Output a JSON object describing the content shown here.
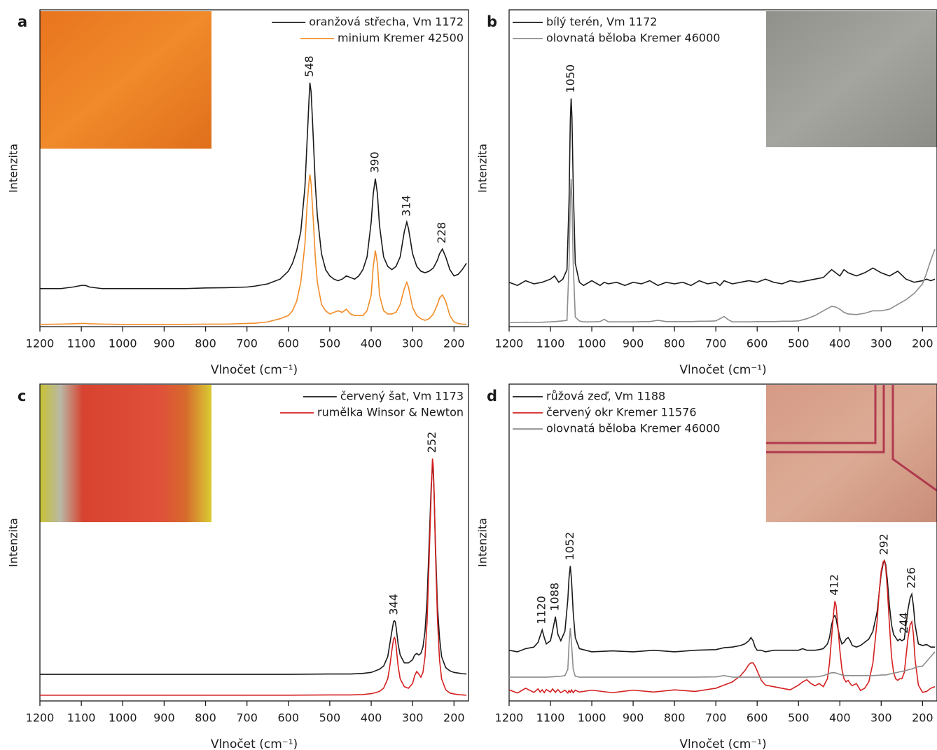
{
  "chart_data": [
    {
      "type": "line",
      "panel": "a",
      "xlabel": "Vlnočet (cm⁻¹)",
      "ylabel": "Intenzita",
      "legend": "upper right",
      "xlim": [
        1200,
        165
      ],
      "ylim": [
        0,
        100
      ],
      "xticks": [
        1200,
        1100,
        1000,
        900,
        800,
        700,
        600,
        500,
        400,
        300,
        200
      ],
      "peak_labels": [
        548,
        390,
        314,
        228
      ],
      "x": [
        1200,
        1150,
        1120,
        1100,
        1090,
        1080,
        1050,
        1000,
        950,
        900,
        850,
        800,
        750,
        700,
        680,
        650,
        620,
        600,
        590,
        580,
        570,
        560,
        555,
        550,
        548,
        545,
        540,
        535,
        530,
        520,
        510,
        500,
        490,
        480,
        470,
        460,
        450,
        440,
        430,
        420,
        410,
        400,
        395,
        390,
        385,
        380,
        370,
        360,
        350,
        340,
        330,
        320,
        314,
        310,
        300,
        290,
        280,
        270,
        260,
        250,
        240,
        235,
        228,
        220,
        210,
        200,
        190,
        180,
        170
      ],
      "series": [
        {
          "name": "oranžová střecha, Vm 1172",
          "color": "#1a1a1a",
          "values": [
            12,
            12,
            12.5,
            13,
            13,
            12.5,
            12,
            12,
            12,
            12,
            12,
            12.2,
            12.3,
            12.5,
            12.8,
            13.5,
            15,
            17.5,
            20,
            24,
            30,
            44,
            58,
            72,
            77,
            74,
            60,
            45,
            35,
            23,
            18,
            16,
            15,
            14.5,
            15,
            16,
            15.5,
            15,
            16,
            18,
            22,
            33,
            42,
            46.7,
            42,
            32,
            22,
            19,
            18,
            19,
            22,
            30,
            33,
            31,
            23,
            19,
            17.5,
            17,
            17.5,
            18.5,
            21,
            23,
            24.5,
            22,
            18,
            16,
            16.5,
            18,
            20
          ]
        },
        {
          "name": "minium Kremer 42500",
          "color": "#f28c28",
          "values": [
            0.7,
            0.8,
            0.9,
            1,
            1,
            0.9,
            0.8,
            0.7,
            0.7,
            0.7,
            0.7,
            0.8,
            0.8,
            1,
            1.1,
            1.5,
            2.5,
            3.5,
            5,
            8,
            14,
            26,
            38,
            46,
            48,
            45,
            34,
            22,
            14,
            7,
            5,
            4,
            4.5,
            5,
            4.5,
            5.5,
            4,
            3.5,
            3.5,
            3.5,
            5,
            10,
            19,
            24,
            20,
            10,
            5,
            4,
            4,
            4.5,
            7,
            12,
            14,
            12.5,
            6,
            3.5,
            2.5,
            2,
            2.5,
            4,
            7,
            9,
            10,
            8,
            3.5,
            1.5,
            1,
            0.8,
            0.7
          ]
        }
      ]
    },
    {
      "type": "line",
      "panel": "b",
      "xlabel": "Vlnočet (cm⁻¹)",
      "ylabel": "Intenzita",
      "legend": "upper left",
      "xlim": [
        1200,
        165
      ],
      "ylim": [
        0,
        100
      ],
      "xticks": [
        1200,
        1100,
        1000,
        900,
        800,
        700,
        600,
        500,
        400,
        300,
        200
      ],
      "peak_labels": [
        1050
      ],
      "x": [
        1200,
        1180,
        1160,
        1140,
        1120,
        1100,
        1090,
        1080,
        1070,
        1060,
        1055,
        1052,
        1050,
        1048,
        1045,
        1040,
        1030,
        1020,
        1000,
        980,
        970,
        960,
        940,
        920,
        900,
        880,
        860,
        840,
        820,
        800,
        780,
        760,
        740,
        720,
        700,
        690,
        680,
        670,
        660,
        640,
        620,
        600,
        580,
        560,
        540,
        520,
        500,
        480,
        460,
        440,
        420,
        410,
        400,
        390,
        380,
        360,
        340,
        320,
        300,
        280,
        260,
        240,
        220,
        200,
        190,
        180,
        170
      ],
      "series": [
        {
          "name": "bílý terén, Vm 1172",
          "color": "#1a1a1a",
          "values": [
            14,
            13,
            14.5,
            13.5,
            14,
            15,
            16,
            14,
            15,
            18,
            40,
            65,
            72,
            66,
            45,
            20,
            14,
            13,
            14.5,
            13,
            14,
            13.5,
            14,
            13,
            14,
            13.5,
            14.5,
            13,
            14,
            13.5,
            14,
            13,
            14.5,
            13.5,
            14,
            13,
            14.5,
            14,
            13.5,
            14,
            14.5,
            14,
            15,
            14,
            13.5,
            14.5,
            14,
            14.5,
            15,
            15.5,
            18,
            17,
            16,
            18,
            17,
            16,
            17,
            18.5,
            17,
            16,
            17.5,
            15,
            14,
            14.5,
            15,
            14.5,
            15
          ]
        },
        {
          "name": "olovnatá běloba Kremer 46000",
          "color": "#8c8c8c",
          "values": [
            1.3,
            1.3,
            1.4,
            1.3,
            1.4,
            1.5,
            1.6,
            1.7,
            1.8,
            2,
            20,
            40,
            46.7,
            40,
            20,
            3,
            1.8,
            1.5,
            1.5,
            1.6,
            2.3,
            1.5,
            1.5,
            1.5,
            1.5,
            1.6,
            1.6,
            2,
            1.6,
            1.6,
            1.6,
            1.6,
            1.7,
            1.7,
            1.8,
            2.5,
            3.2,
            2.2,
            1.5,
            1.5,
            1.5,
            1.6,
            1.6,
            1.6,
            1.7,
            1.7,
            1.8,
            2.5,
            3.5,
            5,
            6.4,
            6.2,
            5.5,
            4.5,
            4,
            3.8,
            4.2,
            5,
            5,
            5.5,
            7,
            8.5,
            10.5,
            13.5,
            17,
            21,
            24.5
          ]
        }
      ]
    },
    {
      "type": "line",
      "panel": "c",
      "xlabel": "Vlnočet (cm⁻¹)",
      "ylabel": "Intenzita",
      "legend": "upper right",
      "xlim": [
        1200,
        165
      ],
      "ylim": [
        0,
        100
      ],
      "xticks": [
        1200,
        1100,
        1000,
        900,
        800,
        700,
        600,
        500,
        400,
        300,
        200
      ],
      "peak_labels": [
        344,
        252
      ],
      "x": [
        1200,
        1100,
        1000,
        900,
        800,
        700,
        600,
        500,
        450,
        420,
        400,
        390,
        380,
        370,
        360,
        355,
        350,
        346,
        344,
        342,
        340,
        335,
        330,
        320,
        310,
        300,
        295,
        290,
        285,
        280,
        275,
        270,
        265,
        260,
        255,
        252,
        250,
        248,
        245,
        240,
        235,
        230,
        220,
        210,
        200,
        190,
        180,
        170
      ],
      "series": [
        {
          "name": "červený šat, Vm 1173",
          "color": "#1a1a1a",
          "values": [
            8.4,
            8.4,
            8.4,
            8.4,
            8.4,
            8.4,
            8.4,
            8.5,
            8.5,
            8.7,
            9,
            9.5,
            10,
            11,
            14,
            18,
            22,
            25,
            25.3,
            25,
            23.5,
            18,
            14.5,
            12,
            12,
            13,
            14.5,
            15,
            14.5,
            15,
            17,
            22,
            32,
            50,
            68,
            74,
            72,
            65,
            50,
            30,
            20,
            14,
            10.5,
            9.5,
            9,
            8.8,
            8.6,
            8.5
          ]
        },
        {
          "name": "rumělka Winsor & Newton",
          "color": "#d42020",
          "values": [
            1.8,
            1.8,
            1.8,
            1.8,
            1.8,
            1.8,
            1.8,
            1.9,
            1.9,
            2,
            2.3,
            2.6,
            3,
            4,
            7,
            11,
            16,
            19.5,
            20,
            19.5,
            17.5,
            11,
            7,
            4.5,
            4,
            5.5,
            8,
            9.3,
            8.5,
            7.5,
            9,
            14,
            25,
            45,
            66,
            76.5,
            74,
            66,
            48,
            26,
            13,
            7,
            3.5,
            2.5,
            2.2,
            2,
            1.9,
            1.8
          ]
        }
      ]
    },
    {
      "type": "line",
      "panel": "d",
      "xlabel": "Vlnočet (cm⁻¹)",
      "ylabel": "Intenzita",
      "legend": "upper left",
      "xlim": [
        1200,
        165
      ],
      "ylim": [
        0,
        100
      ],
      "xticks": [
        1200,
        1100,
        1000,
        900,
        800,
        700,
        600,
        500,
        400,
        300,
        200
      ],
      "peak_labels": [
        1120,
        1088,
        1052,
        412,
        292,
        244,
        226
      ],
      "x": [
        1200,
        1180,
        1160,
        1140,
        1130,
        1125,
        1120,
        1115,
        1110,
        1100,
        1095,
        1088,
        1082,
        1075,
        1065,
        1058,
        1055,
        1052,
        1049,
        1045,
        1040,
        1030,
        1000,
        950,
        900,
        850,
        800,
        750,
        700,
        680,
        660,
        640,
        630,
        620,
        615,
        610,
        605,
        600,
        590,
        580,
        560,
        540,
        520,
        500,
        490,
        480,
        470,
        460,
        450,
        440,
        430,
        425,
        420,
        415,
        412,
        409,
        405,
        400,
        395,
        390,
        385,
        380,
        375,
        370,
        360,
        350,
        340,
        330,
        320,
        310,
        305,
        300,
        295,
        292,
        289,
        285,
        280,
        275,
        270,
        265,
        260,
        255,
        250,
        244,
        240,
        235,
        230,
        226,
        222,
        218,
        210,
        200,
        190,
        180,
        170
      ],
      "series": [
        {
          "name": "růžová zeď, Vm 1188",
          "color": "#1a1a1a",
          "values": [
            16,
            15.5,
            16.5,
            17,
            18.5,
            20.5,
            22.4,
            20,
            18,
            19,
            22,
            26.6,
            21,
            19,
            22,
            32,
            39,
            42.6,
            38,
            28,
            20,
            16.5,
            15.5,
            15.8,
            15.5,
            16,
            15.5,
            16,
            16.2,
            16.8,
            17,
            17.5,
            18,
            19,
            20,
            19,
            17,
            16,
            16,
            15.5,
            16,
            16,
            16,
            16,
            16.5,
            16,
            16,
            16,
            16.2,
            16.5,
            18,
            20,
            24,
            26.5,
            27,
            26,
            23,
            20,
            18,
            18.5,
            19.5,
            20,
            19,
            17.5,
            17,
            17.5,
            18.5,
            19.5,
            22,
            28,
            34,
            40,
            43.5,
            44.3,
            43,
            38,
            30,
            24,
            21,
            20,
            19,
            19.5,
            19,
            19.5,
            24,
            29,
            32.5,
            33.7,
            30,
            24,
            18,
            17.5,
            17.8,
            17,
            17
          ]
        },
        {
          "name": "červený okr Kremer 11576",
          "color": "#d42020",
          "values": [
            3.5,
            2.5,
            4,
            2.7,
            3.8,
            2.8,
            3.5,
            2.6,
            3.6,
            2.8,
            3.8,
            2.7,
            3.6,
            2.6,
            3.4,
            2.5,
            3.3,
            2.7,
            3.5,
            2.6,
            3.4,
            2.8,
            3.4,
            2.6,
            3.4,
            2.8,
            3.5,
            3,
            4,
            5,
            6,
            8,
            9.5,
            11.5,
            12,
            12,
            11,
            9.5,
            6.5,
            5,
            4.5,
            4,
            3.5,
            5,
            6,
            6.7,
            5.5,
            4.8,
            5.5,
            4.5,
            7,
            12,
            20,
            28,
            31.5,
            30,
            24,
            16,
            10,
            7,
            6,
            6.5,
            5.5,
            4.8,
            5.5,
            3.3,
            4,
            6,
            12,
            25,
            34,
            41,
            44,
            44.3,
            42,
            35,
            24,
            14,
            9,
            7,
            6.5,
            7,
            7,
            9,
            14,
            20,
            24,
            25,
            21,
            13,
            5,
            2.7,
            3,
            4,
            4.5
          ]
        },
        {
          "name": "olovnatá běloba Kremer 46000",
          "color": "#8c8c8c",
          "values": [
            7.5,
            7.5,
            7.5,
            7.5,
            7.5,
            7.5,
            7.5,
            7.5,
            7.5,
            7.6,
            7.6,
            7.7,
            7.7,
            7.8,
            8,
            10,
            18,
            23,
            18,
            10,
            7.8,
            7.5,
            7.5,
            7.5,
            7.5,
            7.5,
            7.5,
            7.5,
            7.6,
            8,
            7.5,
            7.5,
            7.5,
            7.5,
            7.5,
            7.5,
            7.5,
            7.5,
            7.5,
            7.5,
            7.5,
            7.5,
            7.5,
            7.5,
            7.5,
            7.5,
            7.6,
            7.6,
            7.7,
            8,
            8.4,
            8.7,
            8.9,
            8.9,
            8.9,
            8.8,
            8.6,
            8.4,
            8.2,
            8,
            8,
            8,
            8,
            8,
            8,
            8,
            8,
            8,
            8,
            8.1,
            8.1,
            8.2,
            8.2,
            8.2,
            8.2,
            8.3,
            8.5,
            8.6,
            8.8,
            8.9,
            9,
            9.2,
            9.3,
            9.5,
            9.6,
            9.8,
            10,
            10.1,
            10.3,
            10.5,
            10.8,
            11,
            12.5,
            14,
            15.5
          ]
        }
      ]
    }
  ]
}
